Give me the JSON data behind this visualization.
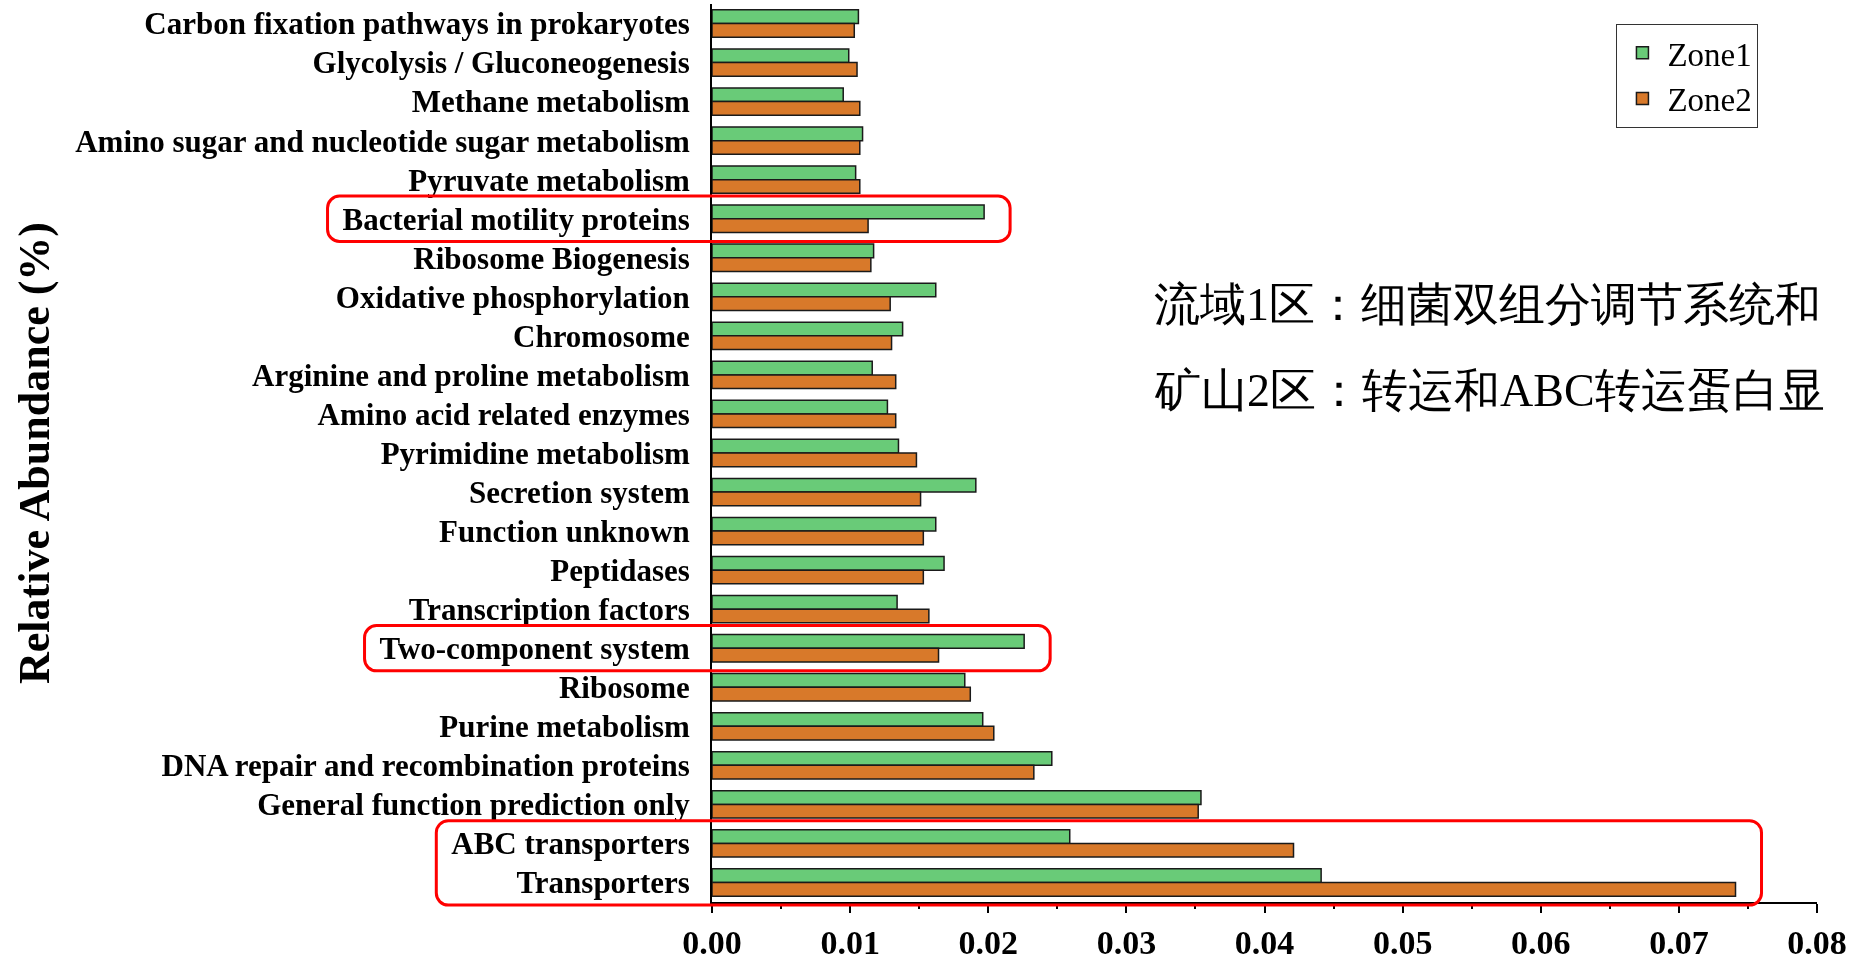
{
  "chart_data": {
    "type": "bar",
    "orientation": "horizontal",
    "ylabel": "Relative Abundance (%)",
    "categories": [
      "Carbon fixation pathways in prokaryotes",
      "Glycolysis / Gluconeogenesis",
      "Methane metabolism",
      "Amino sugar and nucleotide sugar metabolism",
      "Pyruvate metabolism",
      "Bacterial motility proteins",
      "Ribosome Biogenesis",
      "Oxidative phosphorylation",
      "Chromosome",
      "Arginine and proline metabolism",
      "Amino acid related enzymes",
      "Pyrimidine metabolism",
      "Secretion system",
      "Function unknown",
      "Peptidases",
      "Transcription factors",
      "Two-component system",
      "Ribosome",
      "Purine metabolism",
      "DNA repair and recombination proteins",
      "General function prediction only",
      "ABC transporters",
      "Transporters"
    ],
    "series": [
      {
        "name": "Zone1",
        "color": "#69cb78",
        "values": [
          0.0106,
          0.0099,
          0.0095,
          0.0109,
          0.0104,
          0.0197,
          0.0117,
          0.0162,
          0.0138,
          0.0116,
          0.0127,
          0.0135,
          0.0191,
          0.0162,
          0.0168,
          0.0134,
          0.0226,
          0.0183,
          0.0196,
          0.0246,
          0.0354,
          0.0259,
          0.0441
        ]
      },
      {
        "name": "Zone2",
        "color": "#d8792a",
        "values": [
          0.0103,
          0.0105,
          0.0107,
          0.0107,
          0.0107,
          0.0113,
          0.0115,
          0.0129,
          0.013,
          0.0133,
          0.0133,
          0.0148,
          0.0151,
          0.0153,
          0.0153,
          0.0157,
          0.0164,
          0.0187,
          0.0204,
          0.0233,
          0.0352,
          0.0421,
          0.0741
        ]
      }
    ],
    "xlim": [
      0,
      0.08
    ],
    "xticks": [
      {
        "value": 0,
        "label": "0.00"
      },
      {
        "value": 0.005,
        "label": null
      },
      {
        "value": 0.01,
        "label": "0.01"
      },
      {
        "value": 0.015,
        "label": null
      },
      {
        "value": 0.02,
        "label": "0.02"
      },
      {
        "value": 0.025,
        "label": null
      },
      {
        "value": 0.03,
        "label": "0.03"
      },
      {
        "value": 0.035,
        "label": null
      },
      {
        "value": 0.04,
        "label": "0.04"
      },
      {
        "value": 0.045,
        "label": null
      },
      {
        "value": 0.05,
        "label": "0.05"
      },
      {
        "value": 0.055,
        "label": null
      },
      {
        "value": 0.06,
        "label": "0.06"
      },
      {
        "value": 0.065,
        "label": null
      },
      {
        "value": 0.07,
        "label": "0.07"
      },
      {
        "value": 0.075,
        "label": null
      },
      {
        "value": 0.08,
        "label": "0.08"
      }
    ],
    "annotations": [
      "流域1区：细菌双组分调节系统和",
      "矿山2区：转运和ABC转运蛋白显"
    ],
    "legend": "top right"
  }
}
